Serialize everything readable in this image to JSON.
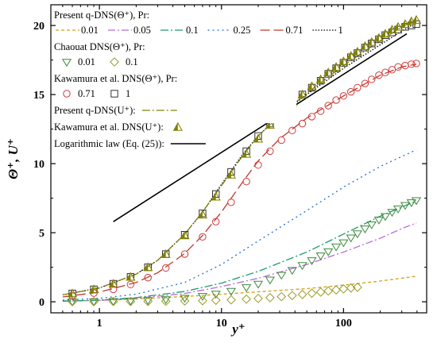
{
  "chart_data": {
    "type": "scatter",
    "xscale": "log",
    "xlim": [
      0.4,
      480
    ],
    "ylim": [
      -0.8,
      21.5
    ],
    "xlabel": "y⁺",
    "ylabel": "Θ⁺, U⁺",
    "xticks": [
      1,
      10,
      100
    ],
    "xtick_labels": [
      "1",
      "10",
      "100"
    ],
    "yticks": [
      0,
      5,
      10,
      15,
      20
    ],
    "ytick_labels": [
      "0",
      "5",
      "10",
      "15",
      "20"
    ],
    "legend": {
      "placement": "top-left",
      "groups": [
        {
          "title": "Present q-DNS(Θ⁺), Pr:",
          "entries": [
            {
              "label": "0.01",
              "color": "#d4a017",
              "dash": "4,3"
            },
            {
              "label": "0.05",
              "color": "#b86bd8",
              "dash": "9,3,2,3"
            },
            {
              "label": "0.1",
              "color": "#1f9a6a",
              "dash": "10,3,2,3"
            },
            {
              "label": "0.25",
              "color": "#1f6fd6",
              "dash": "2,4"
            },
            {
              "label": "0.71",
              "color": "#c0392b",
              "dash": "12,5"
            },
            {
              "label": "1",
              "color": "#000000",
              "dash": "1.5,2"
            }
          ]
        },
        {
          "title": "Chaouat DNS(Θ⁺), Pr:",
          "entries": [
            {
              "label": "0.01",
              "marker": "triangle-down",
              "color": "#3a8a3a"
            },
            {
              "label": "0.1",
              "marker": "diamond",
              "color": "#9a9a2a"
            }
          ]
        },
        {
          "title": "Kawamura et al. DNS(Θ⁺), Pr:",
          "entries": [
            {
              "label": "0.71",
              "marker": "circle",
              "color": "#d03a3a"
            },
            {
              "label": "1",
              "marker": "square",
              "color": "#333333"
            }
          ]
        },
        {
          "title": "Present q-DNS(U⁺):",
          "entries": [
            {
              "label": "",
              "color": "#808000",
              "dash": "10,3,2,3"
            }
          ]
        },
        {
          "title": "Kawamura et al. DNS(U⁺):",
          "entries": [
            {
              "label": "",
              "marker": "triangle-up-half",
              "color": "#808000"
            }
          ]
        },
        {
          "title": "Logarithmic law (Eq. (25)):",
          "entries": [
            {
              "label": "",
              "color": "#000000",
              "dash": ""
            }
          ]
        }
      ]
    },
    "series": [
      {
        "name": "0.01",
        "style": "line",
        "color": "#d4a017",
        "dash": "4,3",
        "x": [
          0.5,
          1,
          2,
          5,
          10,
          20,
          50,
          100,
          200,
          395
        ],
        "y": [
          0.05,
          0.1,
          0.2,
          0.38,
          0.55,
          0.72,
          0.95,
          1.2,
          1.5,
          1.85
        ]
      },
      {
        "name": "0.05",
        "style": "line",
        "color": "#b86bd8",
        "dash": "9,3,2,3",
        "x": [
          0.5,
          1,
          2,
          5,
          10,
          20,
          50,
          100,
          200,
          300,
          395
        ],
        "y": [
          0.05,
          0.1,
          0.25,
          0.6,
          1.1,
          1.7,
          2.7,
          3.6,
          4.6,
          5.3,
          5.7
        ]
      },
      {
        "name": "0.1",
        "style": "line",
        "color": "#1f9a6a",
        "dash": "10,3,2,3",
        "x": [
          0.5,
          1,
          2,
          5,
          10,
          20,
          50,
          100,
          200,
          395
        ],
        "y": [
          0.05,
          0.12,
          0.3,
          0.75,
          1.35,
          2.2,
          3.6,
          4.9,
          6.2,
          7.3
        ]
      },
      {
        "name": "0.25",
        "style": "line",
        "color": "#1f6fd6",
        "dash": "2,4",
        "x": [
          0.5,
          1,
          2,
          5,
          10,
          20,
          50,
          100,
          200,
          395
        ],
        "y": [
          0.12,
          0.25,
          0.55,
          1.4,
          2.7,
          4.4,
          6.6,
          8.3,
          9.8,
          11.0
        ]
      },
      {
        "name": "0.71",
        "style": "line",
        "color": "#c0392b",
        "dash": "12,5",
        "x": [
          0.5,
          1,
          2,
          3,
          5,
          7,
          10,
          15,
          20,
          30,
          50,
          100,
          200,
          300,
          395
        ],
        "y": [
          0.35,
          0.7,
          1.4,
          2.1,
          3.5,
          4.8,
          6.5,
          8.7,
          10.2,
          11.8,
          13.3,
          14.9,
          16.4,
          17.0,
          17.2
        ]
      },
      {
        "name": "1",
        "style": "line",
        "color": "#000000",
        "dash": "1.5,2",
        "x": [
          0.5,
          1,
          2,
          3,
          5,
          7,
          10,
          15,
          20,
          30,
          50,
          100,
          200,
          300,
          395
        ],
        "y": [
          0.5,
          1.0,
          2.0,
          3.0,
          4.9,
          6.5,
          8.5,
          10.7,
          12.0,
          13.5,
          15.0,
          16.9,
          18.6,
          19.6,
          20.2
        ]
      },
      {
        "name": "U+ (q-DNS)",
        "style": "line",
        "color": "#808000",
        "dash": "10,3,2,3",
        "x": [
          0.5,
          1,
          2,
          3,
          5,
          7,
          10,
          15,
          20,
          30,
          50,
          100,
          200,
          300,
          395
        ],
        "y": [
          0.5,
          1.0,
          2.0,
          3.0,
          4.9,
          6.5,
          8.4,
          10.6,
          12.0,
          13.5,
          15.1,
          17.1,
          18.9,
          19.9,
          20.4
        ]
      },
      {
        "name": "Logarithmic law",
        "style": "line",
        "color": "#000000",
        "dash": "",
        "x": [
          1.3,
          330
        ],
        "y": [
          5.8,
          19.4
        ]
      },
      {
        "name": "Chaouat Pr=0.01",
        "style": "marker",
        "marker": "triangle-down",
        "color": "#3a8a3a",
        "x": [
          0.6,
          0.9,
          1.3,
          1.8,
          2.5,
          3.5,
          5,
          7,
          9,
          12,
          16,
          20,
          25,
          31,
          38,
          46,
          55,
          65,
          75,
          87,
          100,
          115,
          130,
          150,
          170,
          195,
          220,
          250,
          280,
          320,
          360,
          395
        ],
        "y": [
          0.02,
          0.03,
          0.05,
          0.08,
          0.12,
          0.18,
          0.28,
          0.42,
          0.58,
          0.78,
          1.05,
          1.3,
          1.6,
          1.95,
          2.3,
          2.65,
          3.0,
          3.35,
          3.65,
          4.0,
          4.3,
          4.65,
          4.95,
          5.3,
          5.6,
          5.95,
          6.2,
          6.5,
          6.75,
          7.0,
          7.2,
          7.35
        ]
      },
      {
        "name": "Chaouat Pr=0.1",
        "style": "marker",
        "marker": "diamond",
        "color": "#9a9a2a",
        "x": [
          0.6,
          0.9,
          1.3,
          1.8,
          2.5,
          3.5,
          5,
          7,
          9,
          12,
          16,
          20,
          25,
          31,
          38,
          46,
          55,
          65,
          75,
          87,
          100,
          115,
          130
        ],
        "y": [
          0.01,
          0.01,
          0.02,
          0.02,
          0.03,
          0.04,
          0.06,
          0.08,
          0.11,
          0.14,
          0.19,
          0.24,
          0.3,
          0.37,
          0.45,
          0.53,
          0.62,
          0.7,
          0.78,
          0.86,
          0.93,
          1.0,
          1.05
        ]
      },
      {
        "name": "Kawamura Pr=0.71",
        "style": "marker",
        "marker": "circle",
        "color": "#d03a3a",
        "x": [
          0.6,
          0.9,
          1.3,
          1.8,
          2.5,
          3.5,
          5,
          7,
          9,
          12,
          16,
          20,
          25,
          31,
          38,
          46,
          55,
          65,
          75,
          87,
          100,
          115,
          130,
          150,
          170,
          195,
          220,
          250,
          280,
          320,
          360,
          395
        ],
        "y": [
          0.42,
          0.63,
          0.9,
          1.25,
          1.75,
          2.45,
          3.45,
          4.7,
          5.8,
          7.2,
          8.7,
          9.9,
          10.9,
          11.7,
          12.4,
          12.9,
          13.4,
          13.8,
          14.2,
          14.6,
          14.9,
          15.2,
          15.5,
          15.8,
          16.1,
          16.4,
          16.6,
          16.8,
          17.0,
          17.1,
          17.2,
          17.25
        ]
      },
      {
        "name": "Kawamura Pr=1",
        "style": "marker",
        "marker": "square",
        "color": "#333333",
        "x": [
          0.6,
          0.9,
          1.3,
          1.8,
          2.5,
          3.5,
          5,
          7,
          9,
          12,
          16,
          20,
          25,
          31,
          38,
          46,
          55,
          65,
          75,
          87,
          100,
          115,
          130,
          150,
          170,
          195,
          220,
          250,
          280,
          320,
          360,
          395
        ],
        "y": [
          0.6,
          0.9,
          1.3,
          1.8,
          2.5,
          3.45,
          4.85,
          6.4,
          7.8,
          9.4,
          10.9,
          12.0,
          12.9,
          13.7,
          14.4,
          15.0,
          15.5,
          16.0,
          16.5,
          16.9,
          17.3,
          17.7,
          18.0,
          18.4,
          18.7,
          19.0,
          19.3,
          19.5,
          19.7,
          19.9,
          20.0,
          20.1
        ]
      },
      {
        "name": "Kawamura U+",
        "style": "marker",
        "marker": "triangle-up-half",
        "color": "#808000",
        "x": [
          0.6,
          0.9,
          1.3,
          1.8,
          2.5,
          3.5,
          5,
          7,
          9,
          12,
          16,
          20,
          25,
          31,
          38,
          46,
          55,
          65,
          75,
          87,
          100,
          115,
          130,
          150,
          170,
          195,
          220,
          250,
          280,
          320,
          360,
          395
        ],
        "y": [
          0.6,
          0.9,
          1.3,
          1.8,
          2.5,
          3.45,
          4.8,
          6.3,
          7.6,
          9.2,
          10.7,
          11.8,
          12.8,
          13.7,
          14.4,
          15.0,
          15.6,
          16.1,
          16.6,
          17.0,
          17.4,
          17.8,
          18.1,
          18.5,
          18.8,
          19.1,
          19.4,
          19.7,
          19.9,
          20.1,
          20.3,
          20.4
        ]
      }
    ]
  }
}
